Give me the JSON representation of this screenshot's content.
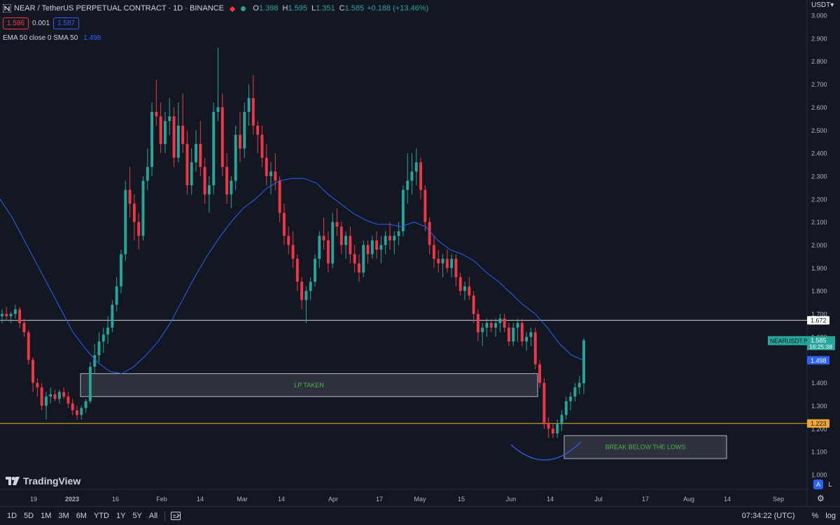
{
  "header": {
    "symbol_title": "NEAR / TetherUS PERPETUAL CONTRACT · 1D · BINANCE",
    "ohlc": [
      {
        "k": "O",
        "v": "1.398"
      },
      {
        "k": "H",
        "v": "1.595"
      },
      {
        "k": "L",
        "v": "1.351"
      },
      {
        "k": "C",
        "v": "1.585"
      }
    ],
    "change": "+0.188 (+13.46%)",
    "sell_price": "1.586",
    "spread": "0.001",
    "buy_price": "1.587",
    "indicator_name": "EMA 50 close 0 SMA 50",
    "indicator_value": "1.498"
  },
  "colors": {
    "background": "#131722",
    "up": "#26a69a",
    "down": "#f23645",
    "ema": "#2962ff",
    "white_line": "#d1d4dc",
    "orange_line": "#f0a730"
  },
  "price_axis": {
    "currency": "USDT",
    "currency_caret": "▾",
    "ticks": [
      "3.000",
      "2.900",
      "2.800",
      "2.700",
      "2.600",
      "2.500",
      "2.400",
      "2.300",
      "2.200",
      "2.100",
      "2.000",
      "1.900",
      "1.800",
      "1.700",
      "1.600",
      "1.500",
      "1.400",
      "1.300",
      "1.200",
      "1.100",
      "1.000"
    ]
  },
  "time_axis": {
    "ticks": [
      {
        "label": "19",
        "bold": false
      },
      {
        "label": "2023",
        "bold": true
      },
      {
        "label": "16",
        "bold": false
      },
      {
        "label": "Feb",
        "bold": false
      },
      {
        "label": "14",
        "bold": false
      },
      {
        "label": "Mar",
        "bold": false
      },
      {
        "label": "14",
        "bold": false
      },
      {
        "label": "Apr",
        "bold": false
      },
      {
        "label": "17",
        "bold": false
      },
      {
        "label": "May",
        "bold": false
      },
      {
        "label": "15",
        "bold": false
      },
      {
        "label": "Jun",
        "bold": false
      },
      {
        "label": "14",
        "bold": false
      },
      {
        "label": "Jul",
        "bold": false
      },
      {
        "label": "17",
        "bold": false
      },
      {
        "label": "Aug",
        "bold": false
      },
      {
        "label": "14",
        "bold": false
      },
      {
        "label": "Sep",
        "bold": false
      }
    ]
  },
  "price_labels": {
    "white_line": "1.672",
    "symbol_tag": "NEARUSDT.P",
    "last_price": "1.585",
    "countdown": "16:25:38",
    "ema": "1.498",
    "orange_line": "1.223"
  },
  "annotations": {
    "lp_taken": "LP TAKEN",
    "break_below": "BREAK BELOW THE LOWS"
  },
  "chart_data": {
    "type": "candlestick",
    "title": "NEAR / TetherUS PERPETUAL CONTRACT · 1D · BINANCE",
    "ylim": [
      1.0,
      3.0
    ],
    "grid": false,
    "series": [
      {
        "name": "NEARUSDT.P",
        "values": [
          [
            1.69,
            1.72,
            1.66,
            1.7
          ],
          [
            1.7,
            1.73,
            1.67,
            1.69
          ],
          [
            1.69,
            1.71,
            1.66,
            1.7
          ],
          [
            1.7,
            1.74,
            1.68,
            1.72
          ],
          [
            1.72,
            1.73,
            1.64,
            1.66
          ],
          [
            1.66,
            1.68,
            1.6,
            1.62
          ],
          [
            1.62,
            1.63,
            1.48,
            1.5
          ],
          [
            1.5,
            1.51,
            1.36,
            1.4
          ],
          [
            1.4,
            1.42,
            1.34,
            1.38
          ],
          [
            1.38,
            1.4,
            1.28,
            1.3
          ],
          [
            1.3,
            1.36,
            1.24,
            1.34
          ],
          [
            1.34,
            1.38,
            1.31,
            1.35
          ],
          [
            1.35,
            1.37,
            1.32,
            1.33
          ],
          [
            1.33,
            1.37,
            1.31,
            1.36
          ],
          [
            1.36,
            1.38,
            1.33,
            1.34
          ],
          [
            1.34,
            1.36,
            1.29,
            1.31
          ],
          [
            1.31,
            1.33,
            1.26,
            1.28
          ],
          [
            1.28,
            1.3,
            1.24,
            1.26
          ],
          [
            1.26,
            1.3,
            1.24,
            1.29
          ],
          [
            1.29,
            1.33,
            1.27,
            1.32
          ],
          [
            1.32,
            1.49,
            1.31,
            1.47
          ],
          [
            1.47,
            1.57,
            1.44,
            1.52
          ],
          [
            1.52,
            1.62,
            1.49,
            1.58
          ],
          [
            1.58,
            1.64,
            1.53,
            1.61
          ],
          [
            1.61,
            1.69,
            1.57,
            1.64
          ],
          [
            1.64,
            1.76,
            1.62,
            1.74
          ],
          [
            1.74,
            1.86,
            1.71,
            1.82
          ],
          [
            1.82,
            1.98,
            1.79,
            1.96
          ],
          [
            1.96,
            2.28,
            1.93,
            2.24
          ],
          [
            2.24,
            2.34,
            2.12,
            2.18
          ],
          [
            2.18,
            2.22,
            2.02,
            2.1
          ],
          [
            2.1,
            2.14,
            1.98,
            2.04
          ],
          [
            2.04,
            2.3,
            2.02,
            2.28
          ],
          [
            2.28,
            2.42,
            2.24,
            2.34
          ],
          [
            2.34,
            2.62,
            2.3,
            2.58
          ],
          [
            2.58,
            2.72,
            2.52,
            2.56
          ],
          [
            2.56,
            2.62,
            2.4,
            2.44
          ],
          [
            2.44,
            2.58,
            2.4,
            2.54
          ],
          [
            2.54,
            2.64,
            2.48,
            2.56
          ],
          [
            2.56,
            2.6,
            2.34,
            2.38
          ],
          [
            2.38,
            2.62,
            2.36,
            2.52
          ],
          [
            2.52,
            2.66,
            2.4,
            2.44
          ],
          [
            2.44,
            2.5,
            2.22,
            2.26
          ],
          [
            2.26,
            2.42,
            2.22,
            2.36
          ],
          [
            2.36,
            2.5,
            2.32,
            2.44
          ],
          [
            2.44,
            2.54,
            2.3,
            2.34
          ],
          [
            2.34,
            2.38,
            2.18,
            2.22
          ],
          [
            2.22,
            2.3,
            2.14,
            2.26
          ],
          [
            2.26,
            2.62,
            2.22,
            2.58
          ],
          [
            2.58,
            2.86,
            2.54,
            2.6
          ],
          [
            2.6,
            2.66,
            2.3,
            2.34
          ],
          [
            2.34,
            2.4,
            2.18,
            2.22
          ],
          [
            2.22,
            2.3,
            2.16,
            2.28
          ],
          [
            2.28,
            2.52,
            2.24,
            2.48
          ],
          [
            2.48,
            2.58,
            2.36,
            2.42
          ],
          [
            2.42,
            2.62,
            2.38,
            2.58
          ],
          [
            2.58,
            2.7,
            2.52,
            2.64
          ],
          [
            2.64,
            2.74,
            2.48,
            2.52
          ],
          [
            2.52,
            2.54,
            2.4,
            2.48
          ],
          [
            2.48,
            2.52,
            2.34,
            2.38
          ],
          [
            2.38,
            2.44,
            2.26,
            2.3
          ],
          [
            2.3,
            2.36,
            2.22,
            2.32
          ],
          [
            2.32,
            2.4,
            2.24,
            2.28
          ],
          [
            2.28,
            2.3,
            2.1,
            2.14
          ],
          [
            2.14,
            2.18,
            2.0,
            2.04
          ],
          [
            2.04,
            2.08,
            1.96,
            2.0
          ],
          [
            2.0,
            2.06,
            1.9,
            1.94
          ],
          [
            1.94,
            1.96,
            1.8,
            1.84
          ],
          [
            1.84,
            1.86,
            1.72,
            1.76
          ],
          [
            1.76,
            1.82,
            1.66,
            1.8
          ],
          [
            1.8,
            1.86,
            1.76,
            1.84
          ],
          [
            1.84,
            1.96,
            1.82,
            1.94
          ],
          [
            1.94,
            2.06,
            1.9,
            2.04
          ],
          [
            2.04,
            2.12,
            1.98,
            2.02
          ],
          [
            2.02,
            2.06,
            1.88,
            1.92
          ],
          [
            1.92,
            2.14,
            1.9,
            2.1
          ],
          [
            2.1,
            2.16,
            2.04,
            2.08
          ],
          [
            2.08,
            2.1,
            1.96,
            2.0
          ],
          [
            2.0,
            2.06,
            1.94,
            2.04
          ],
          [
            2.04,
            2.08,
            1.92,
            1.96
          ],
          [
            1.96,
            2.0,
            1.88,
            1.92
          ],
          [
            1.92,
            1.96,
            1.84,
            1.88
          ],
          [
            1.88,
            2.02,
            1.86,
            2.0
          ],
          [
            2.0,
            2.02,
            1.92,
            1.96
          ],
          [
            1.96,
            2.04,
            1.94,
            2.02
          ],
          [
            2.02,
            2.06,
            1.94,
            1.98
          ],
          [
            1.98,
            2.04,
            1.92,
            2.0
          ],
          [
            2.0,
            2.06,
            1.96,
            2.04
          ],
          [
            2.04,
            2.1,
            1.98,
            2.02
          ],
          [
            2.02,
            2.06,
            1.96,
            2.04
          ],
          [
            2.04,
            2.1,
            2.0,
            2.06
          ],
          [
            2.06,
            2.26,
            2.04,
            2.24
          ],
          [
            2.24,
            2.4,
            2.18,
            2.28
          ],
          [
            2.28,
            2.4,
            2.22,
            2.32
          ],
          [
            2.32,
            2.42,
            2.26,
            2.36
          ],
          [
            2.36,
            2.38,
            2.2,
            2.24
          ],
          [
            2.24,
            2.26,
            2.06,
            2.1
          ],
          [
            2.1,
            2.12,
            1.96,
            2.0
          ],
          [
            2.0,
            2.04,
            1.9,
            1.94
          ],
          [
            1.94,
            1.98,
            1.88,
            1.92
          ],
          [
            1.92,
            1.96,
            1.86,
            1.94
          ],
          [
            1.94,
            1.98,
            1.88,
            1.9
          ],
          [
            1.9,
            1.96,
            1.86,
            1.94
          ],
          [
            1.94,
            1.96,
            1.82,
            1.86
          ],
          [
            1.86,
            1.88,
            1.78,
            1.8
          ],
          [
            1.8,
            1.84,
            1.76,
            1.82
          ],
          [
            1.82,
            1.86,
            1.76,
            1.78
          ],
          [
            1.78,
            1.8,
            1.66,
            1.7
          ],
          [
            1.7,
            1.72,
            1.58,
            1.62
          ],
          [
            1.62,
            1.66,
            1.56,
            1.64
          ],
          [
            1.64,
            1.68,
            1.6,
            1.66
          ],
          [
            1.66,
            1.68,
            1.62,
            1.64
          ],
          [
            1.64,
            1.68,
            1.6,
            1.66
          ],
          [
            1.66,
            1.7,
            1.62,
            1.68
          ],
          [
            1.68,
            1.7,
            1.62,
            1.64
          ],
          [
            1.64,
            1.66,
            1.56,
            1.58
          ],
          [
            1.58,
            1.66,
            1.56,
            1.64
          ],
          [
            1.64,
            1.68,
            1.58,
            1.66
          ],
          [
            1.66,
            1.68,
            1.56,
            1.58
          ],
          [
            1.58,
            1.62,
            1.54,
            1.6
          ],
          [
            1.6,
            1.64,
            1.56,
            1.62
          ],
          [
            1.62,
            1.64,
            1.46,
            1.48
          ],
          [
            1.48,
            1.5,
            1.38,
            1.4
          ],
          [
            1.4,
            1.42,
            1.2,
            1.22
          ],
          [
            1.22,
            1.25,
            1.16,
            1.2
          ],
          [
            1.2,
            1.22,
            1.16,
            1.18
          ],
          [
            1.18,
            1.24,
            1.16,
            1.22
          ],
          [
            1.22,
            1.28,
            1.19,
            1.26
          ],
          [
            1.26,
            1.34,
            1.24,
            1.32
          ],
          [
            1.32,
            1.36,
            1.28,
            1.34
          ],
          [
            1.34,
            1.4,
            1.32,
            1.38
          ],
          [
            1.38,
            1.43,
            1.35,
            1.4
          ],
          [
            1.398,
            1.595,
            1.351,
            1.585
          ]
        ]
      },
      {
        "name": "EMA 50",
        "values": [
          2.2,
          2.12,
          2.02,
          1.92,
          1.82,
          1.72,
          1.62,
          1.55,
          1.49,
          1.45,
          1.44,
          1.47,
          1.52,
          1.58,
          1.66,
          1.76,
          1.86,
          1.95,
          2.03,
          2.1,
          2.16,
          2.2,
          2.25,
          2.28,
          2.29,
          2.29,
          2.27,
          2.22,
          2.18,
          2.14,
          2.11,
          2.09,
          2.09,
          2.08,
          2.1,
          2.08,
          2.02,
          1.98,
          1.96,
          1.93,
          1.88,
          1.84,
          1.79,
          1.74,
          1.7,
          1.64,
          1.57,
          1.52,
          1.498
        ]
      }
    ],
    "levels": [
      1.672,
      1.223
    ],
    "zones": [
      {
        "label": "LP TAKEN",
        "low": 1.34,
        "high": 1.44
      },
      {
        "label": "BREAK BELOW THE LOWS",
        "low": 1.07,
        "high": 1.17
      }
    ]
  }
}
